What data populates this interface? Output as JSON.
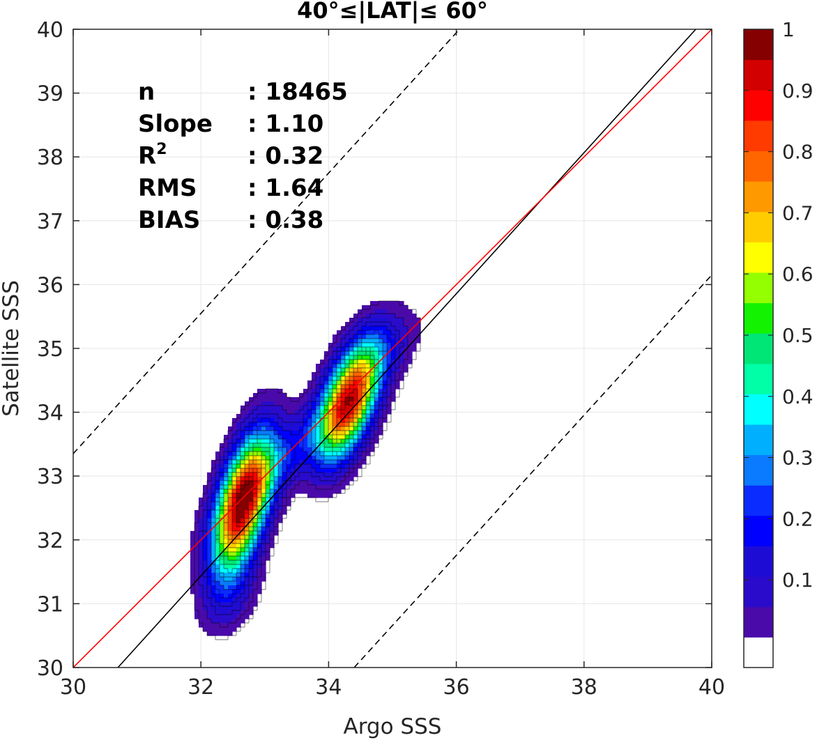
{
  "chart_data": {
    "type": "heatmap",
    "subtype": "density-contour",
    "title": "40°≤|LAT|≤ 60°",
    "xlabel": "Argo SSS",
    "ylabel": "Satellite SSS",
    "xlim": [
      30,
      40
    ],
    "ylim": [
      30,
      40
    ],
    "xticks": [
      "30",
      "32",
      "34",
      "36",
      "38",
      "40"
    ],
    "yticks": [
      "30",
      "31",
      "32",
      "33",
      "34",
      "35",
      "36",
      "37",
      "38",
      "39",
      "40"
    ],
    "grid": true,
    "stats": [
      {
        "label": "n",
        "value": ": 18465"
      },
      {
        "label": "Slope",
        "value": ": 1.10"
      },
      {
        "label": "R",
        "sup": "2",
        "value": ": 0.32"
      },
      {
        "label": "RMS",
        "value": ": 1.64"
      },
      {
        "label": "BIAS",
        "value": ": 0.38"
      }
    ],
    "lines": {
      "one_to_one": {
        "color": "#ff0000",
        "points": [
          [
            30,
            30
          ],
          [
            40,
            40
          ]
        ]
      },
      "regression": {
        "color": "#000000",
        "points": [
          [
            30.7,
            30
          ],
          [
            39.75,
            40
          ]
        ]
      },
      "upper_bound": {
        "color": "#000000",
        "style": "dashed",
        "points": [
          [
            30,
            33.35
          ],
          [
            36.05,
            40
          ]
        ]
      },
      "lower_bound": {
        "color": "#000000",
        "style": "dashed",
        "points": [
          [
            34.4,
            30
          ],
          [
            40,
            36.15
          ]
        ]
      }
    },
    "density_peaks": [
      {
        "x": 32.65,
        "y": 32.55,
        "sx": 0.32,
        "sy": 0.75,
        "rho": 0.55,
        "amp": 1.0
      },
      {
        "x": 34.32,
        "y": 34.15,
        "sx": 0.33,
        "sy": 0.62,
        "rho": 0.55,
        "amp": 0.92
      },
      {
        "x": 33.35,
        "y": 33.35,
        "sx": 0.7,
        "sy": 0.7,
        "rho": 0.85,
        "amp": 0.18
      },
      {
        "x": 34.8,
        "y": 35.0,
        "sx": 0.45,
        "sy": 0.45,
        "rho": 0.5,
        "amp": 0.12
      },
      {
        "x": 32.5,
        "y": 31.1,
        "sx": 0.3,
        "sy": 0.4,
        "rho": 0.3,
        "amp": 0.1
      }
    ],
    "colorbar": {
      "min": 0,
      "max": 1,
      "ticks": [
        "0.1",
        "0.2",
        "0.3",
        "0.4",
        "0.5",
        "0.6",
        "0.7",
        "0.8",
        "0.9",
        "1"
      ],
      "levels": [
        0.05,
        0.1,
        0.15,
        0.2,
        0.25,
        0.3,
        0.35,
        0.4,
        0.45,
        0.5,
        0.55,
        0.6,
        0.65,
        0.7,
        0.75,
        0.8,
        0.85,
        0.9,
        0.95,
        1.0
      ],
      "colors": [
        "#ffffff",
        "#4a0aaa",
        "#2a0bcc",
        "#1d0cd4",
        "#0000ff",
        "#0a2cff",
        "#0a7aff",
        "#00b0ff",
        "#00ffff",
        "#00ffa6",
        "#00e676",
        "#13f200",
        "#93ff00",
        "#ffff00",
        "#ffcc00",
        "#ff9900",
        "#ff6600",
        "#ff3b00",
        "#ff0000",
        "#d20000",
        "#850000"
      ]
    }
  }
}
